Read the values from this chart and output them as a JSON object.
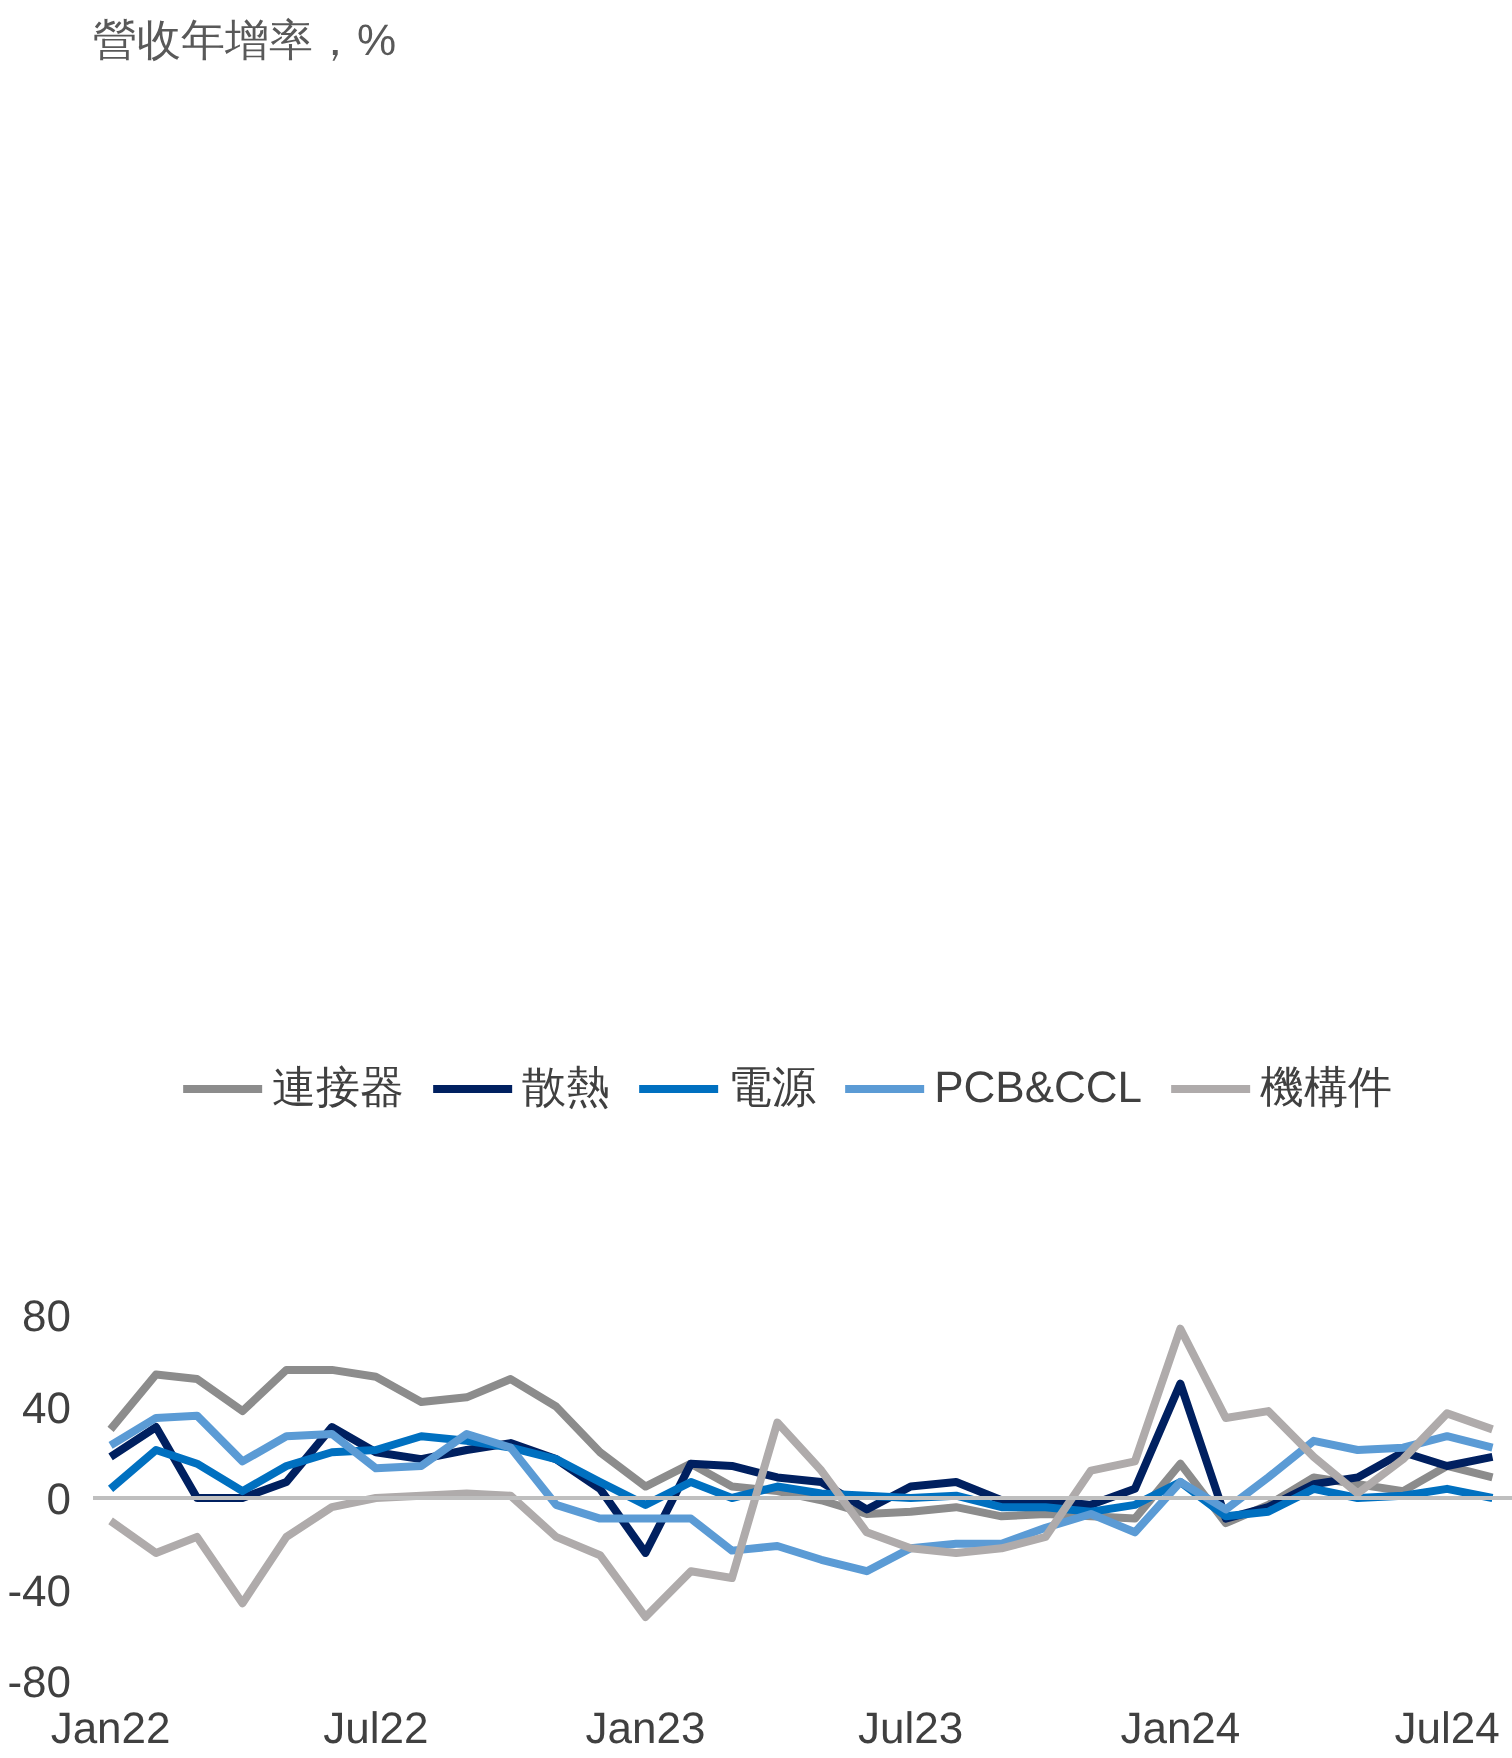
{
  "chart_data": {
    "type": "line",
    "title": "營收年增率，%",
    "x": [
      "2022-01",
      "2022-02",
      "2022-03",
      "2022-04",
      "2022-05",
      "2022-06",
      "2022-07",
      "2022-08",
      "2022-09",
      "2022-10",
      "2022-11",
      "2022-12",
      "2023-01",
      "2023-02",
      "2023-03",
      "2023-04",
      "2023-05",
      "2023-06",
      "2023-07",
      "2023-08",
      "2023-09",
      "2023-10",
      "2023-11",
      "2023-12",
      "2024-01",
      "2024-02",
      "2024-03",
      "2024-04",
      "2024-05",
      "2024-06",
      "2024-07",
      "2024-08"
    ],
    "series": [
      {
        "name": "連接器",
        "color": "#8c8c8c",
        "values": [
          30,
          54,
          52,
          38,
          56,
          56,
          53,
          42,
          44,
          52,
          40,
          20,
          5,
          15,
          5,
          3,
          -1,
          -7,
          -6,
          -4,
          -8,
          -7,
          -8,
          -9,
          15,
          -11,
          -3,
          9,
          6,
          3,
          14,
          9
        ]
      },
      {
        "name": "散熱",
        "color": "#002060",
        "values": [
          18,
          31,
          0,
          0,
          7,
          31,
          20,
          17,
          21,
          24,
          17,
          4,
          -24,
          15,
          14,
          9,
          7,
          -5,
          5,
          7,
          -1,
          -1,
          -3,
          4,
          50,
          -9,
          -4,
          6,
          9,
          20,
          14,
          18
        ]
      },
      {
        "name": "電源",
        "color": "#0070c0",
        "values": [
          4,
          21,
          15,
          3,
          14,
          20,
          21,
          27,
          25,
          22,
          17,
          7,
          -3,
          7,
          0,
          5,
          2,
          1,
          0,
          1,
          -4,
          -4,
          -6,
          -3,
          7,
          -8,
          -6,
          4,
          0,
          1,
          4,
          0
        ]
      },
      {
        "name": "PCB&CCL",
        "color": "#5b9bd5",
        "values": [
          23,
          35,
          36,
          16,
          27,
          28,
          13,
          14,
          28,
          22,
          -3,
          -9,
          -9,
          -9,
          -23,
          -21,
          -27,
          -32,
          -22,
          -20,
          -20,
          -13,
          -7,
          -15,
          7,
          -5,
          9,
          25,
          21,
          22,
          27,
          22
        ]
      },
      {
        "name": "機構件",
        "color": "#afabab",
        "values": [
          -10,
          -24,
          -17,
          -46,
          -17,
          -4,
          0,
          1,
          2,
          1,
          -17,
          -25,
          -52,
          -32,
          -35,
          33,
          12,
          -15,
          -22,
          -24,
          -22,
          -17,
          12,
          16,
          74,
          35,
          38,
          18,
          2,
          17,
          37,
          30
        ]
      }
    ],
    "xlim": [
      "2021-12-20",
      "2024-08-15"
    ],
    "xticks": [
      {
        "value": "2022-01",
        "label": "Jan22"
      },
      {
        "value": "2022-07",
        "label": "Jul22"
      },
      {
        "value": "2023-01",
        "label": "Jan23"
      },
      {
        "value": "2023-07",
        "label": "Jul23"
      },
      {
        "value": "2024-01",
        "label": "Jan24"
      },
      {
        "value": "2024-07",
        "label": "Jul24"
      }
    ],
    "ylim": [
      -80,
      80
    ],
    "yticks": [
      -80,
      -40,
      0,
      40,
      80
    ],
    "ref_lines": [
      {
        "axis": "y",
        "value": 0,
        "label": null,
        "color": "#bfbfbf"
      }
    ],
    "grid": false,
    "legend": "top"
  }
}
